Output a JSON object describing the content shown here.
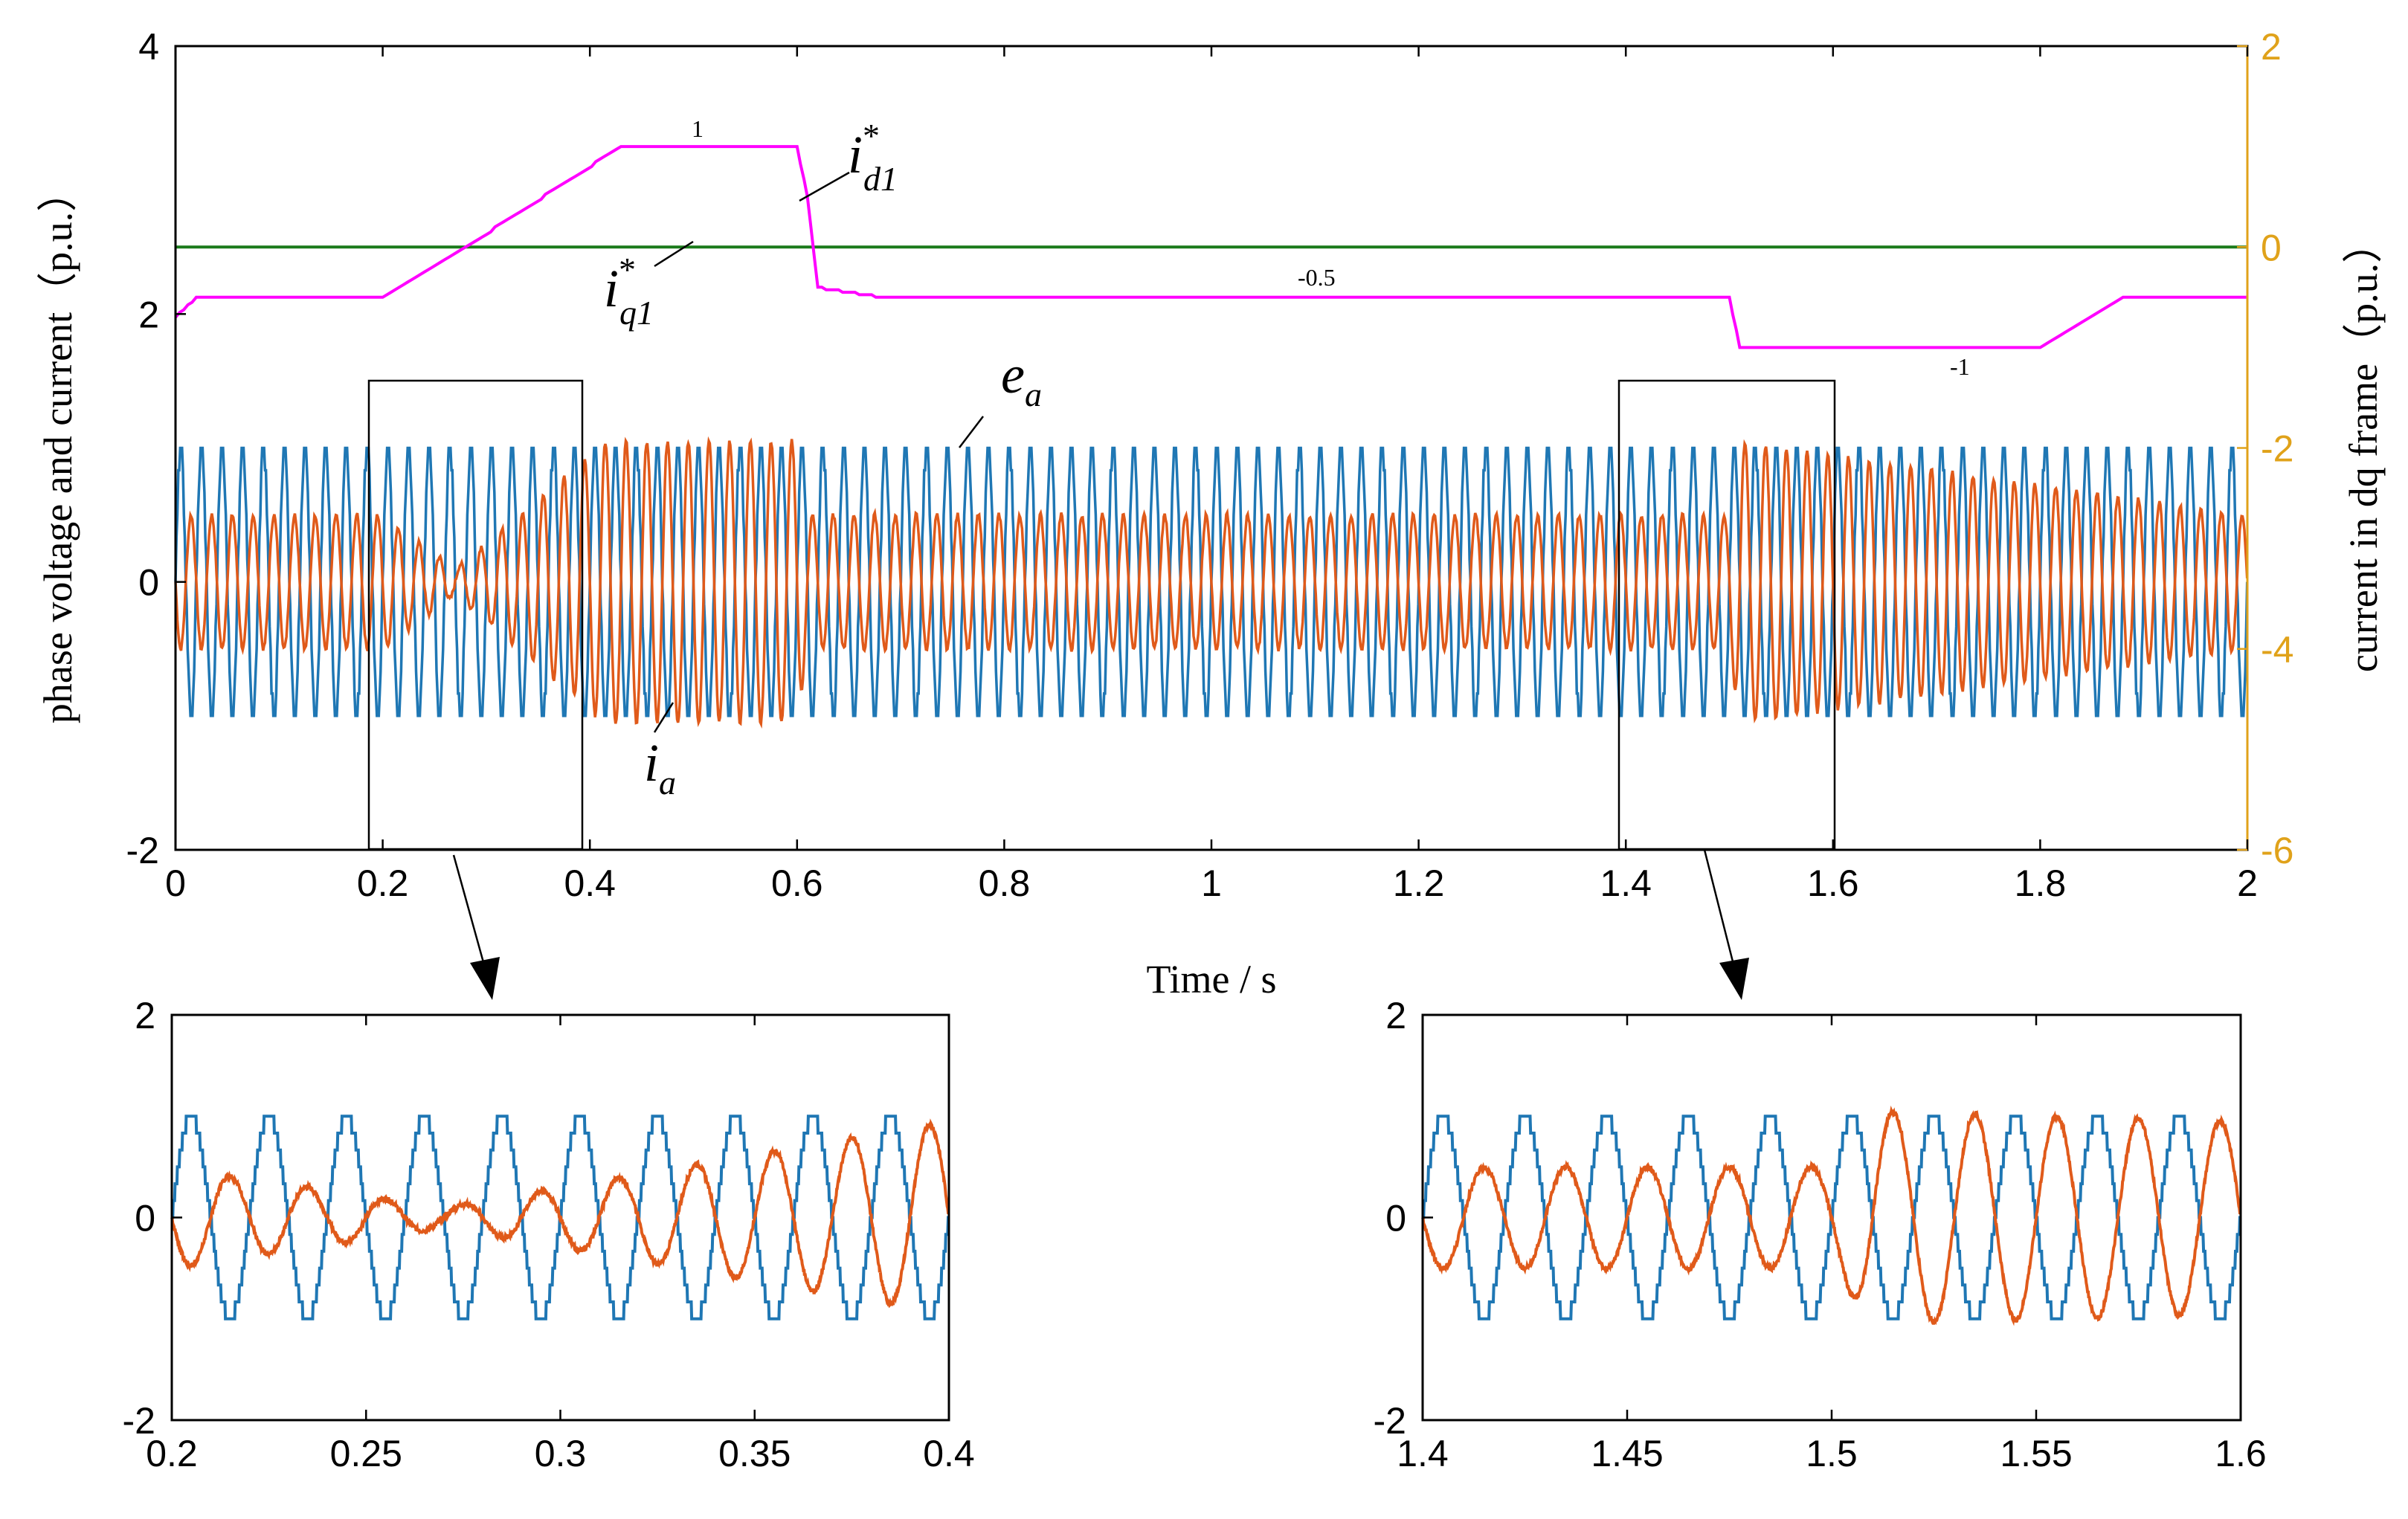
{
  "chart_data": [
    {
      "type": "line",
      "xlabel": "Time / s",
      "ylabel": "phase voltage and current（p.u.）",
      "ylabel_right": "current in dq frame（p.u.）",
      "xlim": [
        0,
        2
      ],
      "ylim": [
        -2,
        4
      ],
      "ylim_right": [
        -6,
        2
      ],
      "x_ticks": [
        "0",
        "0.2",
        "0.4",
        "0.6",
        "0.8",
        "1",
        "1.2",
        "1.4",
        "1.6",
        "1.8",
        "2"
      ],
      "y_ticks": [
        "-2",
        "0",
        "2",
        "4"
      ],
      "y_ticks_right": [
        "-6",
        "-4",
        "-2",
        "0",
        "2"
      ],
      "series": [
        {
          "name": "e_a",
          "axis": "left",
          "color": "#1f77b4",
          "amplitude": 1.0,
          "frequency_hz": 50
        },
        {
          "name": "i_a",
          "axis": "left",
          "color": "#e05a1a",
          "envelope": [
            [
              0,
              0.5
            ],
            [
              0.2,
              0.5
            ],
            [
              0.27,
              0.1
            ],
            [
              0.4,
              0.95
            ],
            [
              0.41,
              1.05
            ],
            [
              0.6,
              1.05
            ],
            [
              0.61,
              0.5
            ],
            [
              1.5,
              0.5
            ],
            [
              1.51,
              1.05
            ],
            [
              2.0,
              0.5
            ]
          ]
        },
        {
          "name": "i_d1*",
          "axis": "right",
          "color": "#ff00ff",
          "x": [
            0,
            0.02,
            0.2,
            0.28,
            0.43,
            0.6,
            0.61,
            0.62,
            0.68,
            1.5,
            1.51,
            1.8,
            1.88,
            2.0
          ],
          "y": [
            -0.7,
            -0.5,
            -0.5,
            0.0,
            1.0,
            1.0,
            0.5,
            -0.4,
            -0.5,
            -0.5,
            -1.0,
            -1.0,
            -0.5,
            -0.5
          ]
        },
        {
          "name": "i_q1*",
          "axis": "right",
          "color": "#1a7a1a",
          "x": [
            0,
            2
          ],
          "y": [
            0,
            0
          ]
        }
      ],
      "data_labels": [
        "1",
        "-0.5",
        "-1"
      ],
      "annotations": [
        {
          "name": "i_d1*",
          "base": "i",
          "sub": "d1",
          "sup": "*"
        },
        {
          "name": "i_q1*",
          "base": "i",
          "sub": "q1",
          "sup": "*"
        },
        {
          "name": "e_a",
          "base": "e",
          "sub": "a"
        },
        {
          "name": "i_a",
          "base": "i",
          "sub": "a"
        }
      ],
      "zoom_boxes": [
        [
          0.2,
          0.4
        ],
        [
          1.4,
          1.6
        ]
      ]
    },
    {
      "type": "line",
      "xlim": [
        0.2,
        0.4
      ],
      "ylim": [
        -2,
        2
      ],
      "x_ticks": [
        "0.2",
        "0.25",
        "0.3",
        "0.35",
        "0.4"
      ],
      "y_ticks": [
        "-2",
        "0",
        "2"
      ]
    },
    {
      "type": "line",
      "xlim": [
        1.4,
        1.6
      ],
      "ylim": [
        -2,
        2
      ],
      "x_ticks": [
        "1.4",
        "1.45",
        "1.5",
        "1.55",
        "1.6"
      ],
      "y_ticks": [
        "-2",
        "0",
        "2"
      ]
    }
  ],
  "colors": {
    "voltage": "#1f77b4",
    "current": "#e05a1a",
    "id_ref": "#ff00ff",
    "iq_ref": "#1a7a1a",
    "right_axis": "#e0a21a"
  }
}
